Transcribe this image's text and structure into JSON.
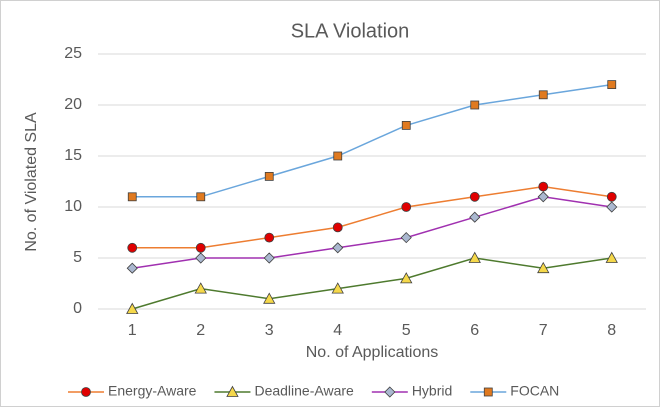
{
  "chart_data": {
    "type": "line",
    "title": "SLA Violation",
    "x_label": "No. of Applications",
    "y_label": "No. of Violated SLA",
    "categories": [
      "1",
      "2",
      "3",
      "4",
      "5",
      "6",
      "7",
      "8"
    ],
    "series": [
      {
        "name": "Energy-Aware",
        "color": "#ed7d31",
        "marker": "circle",
        "marker_color": "#e00000",
        "values": [
          6,
          6,
          7,
          8,
          10,
          11,
          12,
          11
        ]
      },
      {
        "name": "Deadline-Aware",
        "color": "#4e7a2e",
        "marker": "triangle",
        "marker_color": "#f5d84a",
        "values": [
          0,
          2,
          1,
          2,
          3,
          5,
          4,
          5
        ]
      },
      {
        "name": "Hybrid",
        "color": "#a030b0",
        "marker": "diamond",
        "marker_color": "#aab8d0",
        "values": [
          4,
          5,
          5,
          6,
          7,
          9,
          11,
          10
        ]
      },
      {
        "name": "FOCAN",
        "color": "#6aa6dc",
        "marker": "square",
        "marker_color": "#e07a20",
        "values": [
          11,
          11,
          13,
          15,
          18,
          20,
          21,
          22
        ]
      }
    ],
    "ylim": [
      0,
      25
    ],
    "yticks": [
      0,
      5,
      10,
      15,
      20,
      25
    ],
    "grid": true,
    "legend": "bottom"
  }
}
